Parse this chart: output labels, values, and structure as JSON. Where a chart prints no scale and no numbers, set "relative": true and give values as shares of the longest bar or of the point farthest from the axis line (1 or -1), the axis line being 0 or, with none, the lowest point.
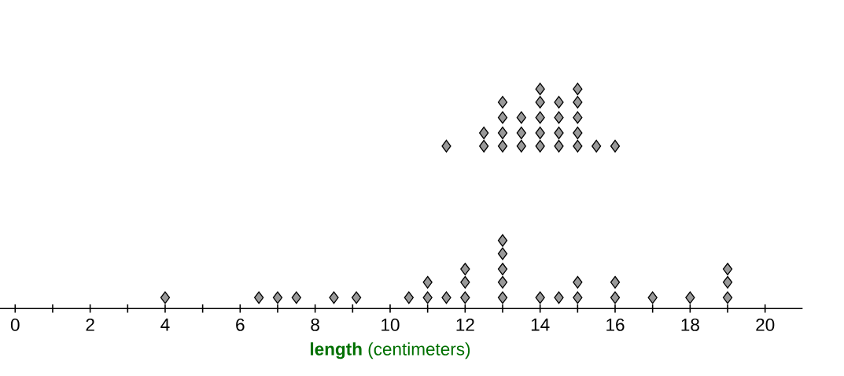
{
  "chart_data": {
    "type": "scatter",
    "relative": true,
    "marker": "diamond",
    "xlabel": "**length** (centimeters)",
    "xlim": [
      -1,
      21
    ],
    "xticks": [
      0,
      {
        "value": 1,
        "label": null
      },
      2,
      {
        "value": 3,
        "label": null
      },
      4,
      {
        "value": 5,
        "label": null
      },
      6,
      {
        "value": 7,
        "label": null
      },
      8,
      {
        "value": 9,
        "label": null
      },
      10,
      {
        "value": 11,
        "label": null
      },
      12,
      {
        "value": 13,
        "label": null
      },
      14,
      {
        "value": 15,
        "label": null
      },
      16,
      {
        "value": 17,
        "label": null
      },
      18,
      {
        "value": 19,
        "label": null
      },
      20
    ],
    "series": [
      {
        "color": "#999999",
        "x": [
          4,
          6.5,
          7,
          7.5,
          8.5,
          9.1,
          10.5,
          11,
          11.5,
          12,
          13,
          14,
          14.5,
          15,
          16,
          17,
          18,
          19,
          11,
          12,
          13,
          15,
          16,
          19,
          12,
          13,
          19,
          13,
          13
        ],
        "values": [
          0.05,
          0.05,
          0.05,
          0.05,
          0.05,
          0.05,
          0.05,
          0.05,
          0.05,
          0.05,
          0.05,
          0.05,
          0.05,
          0.05,
          0.05,
          0.05,
          0.05,
          0.05,
          0.12,
          0.12,
          0.12,
          0.12,
          0.12,
          0.12,
          0.18,
          0.18,
          0.18,
          0.25,
          0.31
        ]
      },
      {
        "color": "#999999",
        "x": [
          11.5,
          12.5,
          13,
          13.5,
          14,
          14.5,
          15,
          15.5,
          16,
          12.5,
          13,
          13.5,
          14,
          14.5,
          15,
          13,
          13.5,
          14,
          14.5,
          15,
          13,
          14,
          14.5,
          15,
          14,
          15
        ],
        "values": [
          0.74,
          0.74,
          0.74,
          0.74,
          0.74,
          0.74,
          0.74,
          0.74,
          0.74,
          0.8,
          0.8,
          0.8,
          0.8,
          0.8,
          0.8,
          0.87,
          0.87,
          0.87,
          0.87,
          0.87,
          0.94,
          0.94,
          0.94,
          0.94,
          1,
          1
        ]
      }
    ]
  }
}
